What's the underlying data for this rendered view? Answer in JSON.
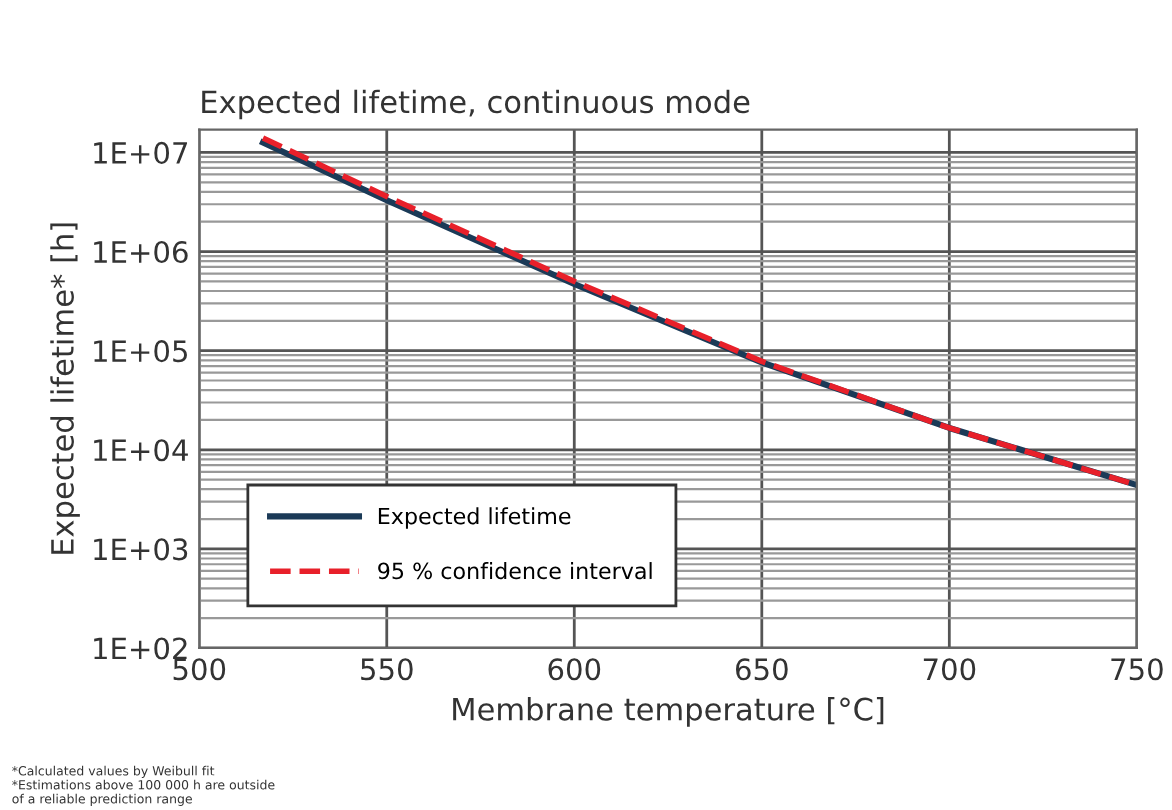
{
  "chart_data": {
    "type": "line",
    "title": "Expected lifetime, continuous mode",
    "xlabel": "Membrane temperature [°C]",
    "ylabel": "Expected lifetime* [h]",
    "x": [
      517,
      550,
      600,
      650,
      700,
      750
    ],
    "series": [
      {
        "name": "Expected lifetime",
        "color": "#1b3a57",
        "values": [
          12600000,
          3300000,
          470000,
          76000,
          16600,
          4400
        ],
        "line_style": "solid"
      },
      {
        "name": "95 % confidence interval",
        "color": "#e8202a",
        "values": [
          14000000,
          3600000,
          500000,
          78000,
          16600,
          4400
        ],
        "line_style": "dashed"
      }
    ],
    "log": "y",
    "xlim": [
      500,
      750
    ],
    "xticks": [
      500,
      550,
      600,
      650,
      700,
      750
    ],
    "ylim": [
      100,
      17000000
    ],
    "yticks": [
      {
        "value": 100,
        "label": "1E+02"
      },
      {
        "value": 1000,
        "label": "1E+03"
      },
      {
        "value": 10000,
        "label": "1E+04"
      },
      {
        "value": 100000,
        "label": "1E+05"
      },
      {
        "value": 1000000,
        "label": "1E+06"
      },
      {
        "value": 10000000,
        "label": "1E+07"
      }
    ],
    "grid": true,
    "legend": "bottom left",
    "marker": "none",
    "annotations": [
      "*Calculated values by Weibull fit\n*Estimations above 100 000 h are outside\nof a reliable prediction range"
    ]
  }
}
